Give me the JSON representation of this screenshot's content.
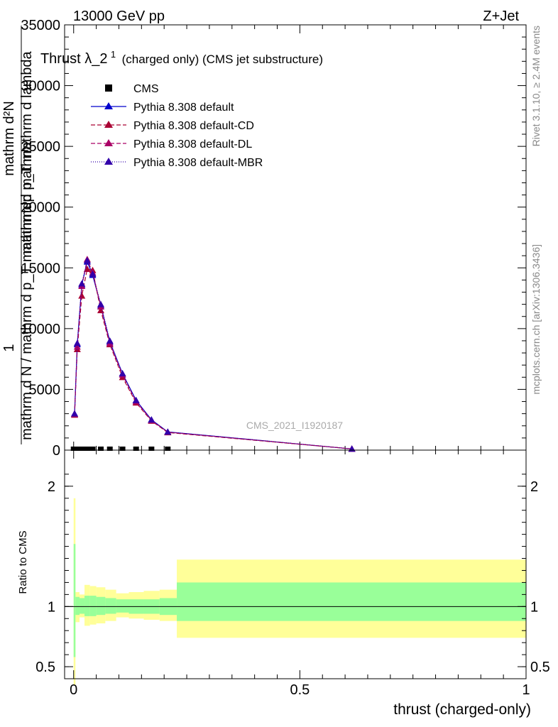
{
  "header": {
    "left": "13000 GeV pp",
    "right": "Z+Jet"
  },
  "title": {
    "main": "Thrust λ_2",
    "superscript": "1",
    "suffix": "(charged only) (CMS jet substructure)"
  },
  "side_labels": {
    "rivet": "Rivet 3.1.10, ≥ 2.4M events",
    "mcplots": "mcplots.cern.ch [arXiv:1306.3436]"
  },
  "watermark": "CMS_2021_I1920187",
  "y_axis_label": {
    "line1": "mathrm d²N",
    "line2": "mathrm d p_T mathrm d lambda",
    "line3": "1",
    "line4": "mathrm d N / mathrm d p_T mathrm dp mathrm"
  },
  "ratio_ylabel": "Ratio to CMS",
  "xlabel": "thrust (charged-only)",
  "legend": [
    {
      "label": "CMS",
      "color": "#000000",
      "marker": "square",
      "line": "none"
    },
    {
      "label": "Pythia 8.308 default",
      "color": "#0000cc",
      "marker": "triangle",
      "line": "solid"
    },
    {
      "label": "Pythia 8.308 default-CD",
      "color": "#aa0033",
      "marker": "triangle",
      "line": "dashed"
    },
    {
      "label": "Pythia 8.308 default-DL",
      "color": "#aa0066",
      "marker": "triangle",
      "line": "dashed"
    },
    {
      "label": "Pythia 8.308 default-MBR",
      "color": "#3300aa",
      "marker": "triangle",
      "line": "dotted"
    }
  ],
  "chart_data": [
    {
      "type": "line",
      "panel": "main",
      "xlim": [
        -0.02,
        1.0
      ],
      "ylim": [
        0,
        35000
      ],
      "xticks": [
        0,
        0.5,
        1
      ],
      "yticks": [
        0,
        5000,
        10000,
        15000,
        20000,
        25000,
        30000,
        35000
      ],
      "ytick_labels": [
        "0",
        "5000",
        "10000",
        "15000",
        "20000",
        "25000",
        "30000",
        "35000"
      ],
      "cms_x": [
        0.0,
        0.008,
        0.018,
        0.03,
        0.042,
        0.06,
        0.08,
        0.108,
        0.138,
        0.172,
        0.208
      ],
      "cms_y": [
        0,
        0,
        0,
        0,
        0,
        0,
        0,
        0,
        0,
        0,
        0
      ],
      "series": [
        {
          "name": "Pythia 8.308 default",
          "color": "#0000cc",
          "dash": "none",
          "x": [
            0.002,
            0.008,
            0.018,
            0.03,
            0.042,
            0.06,
            0.08,
            0.108,
            0.138,
            0.172,
            0.208,
            0.615
          ],
          "y": [
            3000,
            8700,
            13600,
            15500,
            14400,
            11900,
            8900,
            6300,
            4100,
            2500,
            1500,
            100
          ]
        },
        {
          "name": "Pythia 8.308 default-CD",
          "color": "#aa0033",
          "dash": "6,3",
          "x": [
            0.002,
            0.008,
            0.018,
            0.03,
            0.042,
            0.06,
            0.08,
            0.108,
            0.138,
            0.172,
            0.208,
            0.615
          ],
          "y": [
            2900,
            8300,
            12700,
            14900,
            14800,
            11500,
            8700,
            6000,
            3900,
            2400,
            1450,
            100
          ]
        },
        {
          "name": "Pythia 8.308 default-DL",
          "color": "#aa0066",
          "dash": "6,3",
          "x": [
            0.002,
            0.008,
            0.018,
            0.03,
            0.042,
            0.06,
            0.08,
            0.108,
            0.138,
            0.172,
            0.208,
            0.615
          ],
          "y": [
            2950,
            8500,
            13500,
            15700,
            14600,
            11800,
            8800,
            6200,
            4000,
            2450,
            1480,
            100
          ]
        },
        {
          "name": "Pythia 8.308 default-MBR",
          "color": "#3300aa",
          "dash": "1,2",
          "x": [
            0.002,
            0.008,
            0.018,
            0.03,
            0.042,
            0.06,
            0.08,
            0.108,
            0.138,
            0.172,
            0.208,
            0.615
          ],
          "y": [
            3000,
            8800,
            13700,
            15600,
            14500,
            12000,
            9000,
            6300,
            4100,
            2500,
            1500,
            100
          ]
        }
      ]
    },
    {
      "type": "area",
      "panel": "ratio",
      "xlim": [
        -0.02,
        1.0
      ],
      "ylim": [
        0.4,
        2.3
      ],
      "yticks": [
        0.5,
        1,
        2
      ],
      "ytick_labels": [
        "0.5",
        "1",
        "2"
      ],
      "xticks": [
        0,
        0.5,
        1
      ],
      "xtick_labels": [
        "0",
        "0.5",
        "1"
      ],
      "reference": 1,
      "bins": [
        0,
        0.004,
        0.013,
        0.024,
        0.036,
        0.05,
        0.07,
        0.094,
        0.122,
        0.155,
        0.19,
        0.228,
        1.0
      ],
      "band_inner": {
        "color": "#99ff99",
        "lower": [
          0.58,
          0.93,
          0.94,
          0.92,
          0.92,
          0.93,
          0.94,
          0.95,
          0.94,
          0.94,
          0.93,
          0.88
        ],
        "upper": [
          1.52,
          1.08,
          1.07,
          1.09,
          1.09,
          1.08,
          1.07,
          1.06,
          1.06,
          1.06,
          1.07,
          1.2
        ]
      },
      "band_outer": {
        "color": "#ffff99",
        "lower": [
          0.35,
          0.87,
          0.91,
          0.84,
          0.85,
          0.86,
          0.88,
          0.91,
          0.9,
          0.89,
          0.88,
          0.74
        ],
        "upper": [
          1.9,
          1.12,
          1.1,
          1.18,
          1.17,
          1.16,
          1.14,
          1.11,
          1.12,
          1.13,
          1.14,
          1.39
        ]
      }
    }
  ]
}
